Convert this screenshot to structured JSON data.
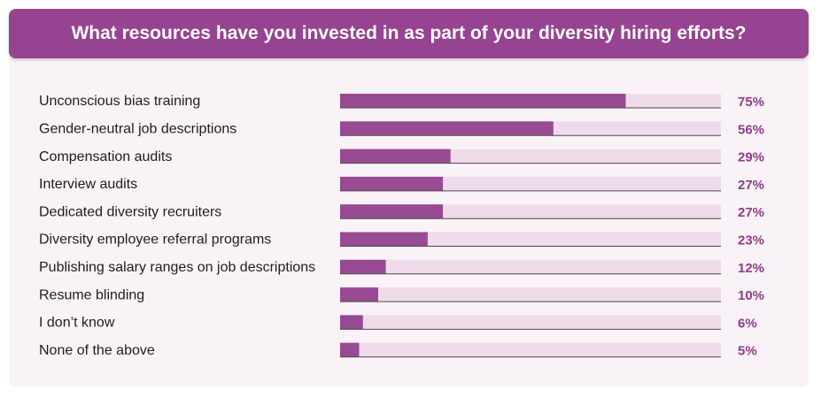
{
  "colors": {
    "accent": "#964391",
    "bar_fill": "#984a93",
    "track": "#f0dbea",
    "baseline": "#4a4a4a",
    "value_text": "#8f3c8a",
    "panel_bg": "#f9f3f7"
  },
  "chart_data": {
    "type": "bar",
    "orientation": "horizontal",
    "title": "What resources have you invested in as part of your diversity hiring efforts?",
    "categories": [
      "Unconscious bias training",
      "Gender-neutral job descriptions",
      "Compensation audits",
      "Interview audits",
      "Dedicated diversity recruiters",
      "Diversity employee referral programs",
      "Publishing salary ranges on job descriptions",
      "Resume blinding",
      "I don’t know",
      "None of the above"
    ],
    "values": [
      75,
      56,
      29,
      27,
      27,
      23,
      12,
      10,
      6,
      5
    ],
    "value_labels": [
      "75%",
      "56%",
      "29%",
      "27%",
      "27%",
      "23%",
      "12%",
      "10%",
      "6%",
      "5%"
    ],
    "xlim": [
      0,
      100
    ],
    "unit": "%",
    "grid": false,
    "legend": "none"
  }
}
